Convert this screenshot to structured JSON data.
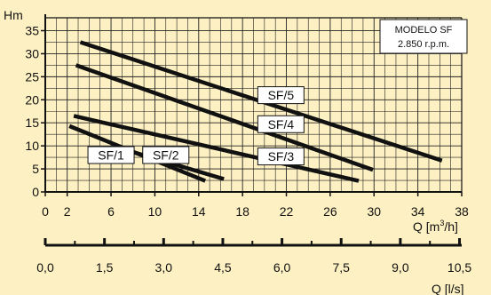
{
  "chart_data": {
    "type": "line",
    "y_axis": {
      "label": "Hm",
      "ylim": [
        0,
        35
      ],
      "ticks": [
        0,
        5,
        10,
        15,
        20,
        25,
        30,
        35
      ]
    },
    "x_axis": {
      "label_main": "Q [m",
      "label_sup": "3",
      "label_tail": "/h]",
      "xlim": [
        0,
        38
      ],
      "ticks": [
        0,
        2,
        6,
        10,
        14,
        18,
        22,
        26,
        30,
        34,
        38
      ]
    },
    "secondary_x_axis": {
      "label": "Q [l/s]",
      "ticks": [
        "0,0",
        "1,5",
        "3,0",
        "4,5",
        "6,0",
        "7,5",
        "9,0",
        "10,5"
      ],
      "values": [
        0,
        1.5,
        3.0,
        4.5,
        6.0,
        7.5,
        9.0,
        10.5
      ]
    },
    "info_box": {
      "line1": "MODELO SF",
      "line2": "2.850 r.p.m."
    },
    "grid": true,
    "series": [
      {
        "name": "SF/1",
        "points": [
          [
            2.2,
            14.3
          ],
          [
            14.6,
            2.4
          ]
        ]
      },
      {
        "name": "SF/2",
        "points": [
          [
            7.5,
            9.0
          ],
          [
            16.3,
            2.8
          ]
        ]
      },
      {
        "name": "SF/3",
        "points": [
          [
            2.6,
            16.5
          ],
          [
            28.6,
            2.4
          ]
        ]
      },
      {
        "name": "SF/4",
        "points": [
          [
            2.8,
            27.5
          ],
          [
            29.9,
            4.8
          ]
        ]
      },
      {
        "name": "SF/5",
        "points": [
          [
            3.2,
            32.5
          ],
          [
            36.2,
            6.8
          ]
        ]
      }
    ],
    "series_label_positions": [
      {
        "name": "SF/1",
        "x": 6.0,
        "y": 8.0
      },
      {
        "name": "SF/2",
        "x": 11.0,
        "y": 8.0
      },
      {
        "name": "SF/3",
        "x": 21.5,
        "y": 7.7
      },
      {
        "name": "SF/4",
        "x": 21.5,
        "y": 14.7
      },
      {
        "name": "SF/5",
        "x": 21.5,
        "y": 21.0
      }
    ]
  }
}
